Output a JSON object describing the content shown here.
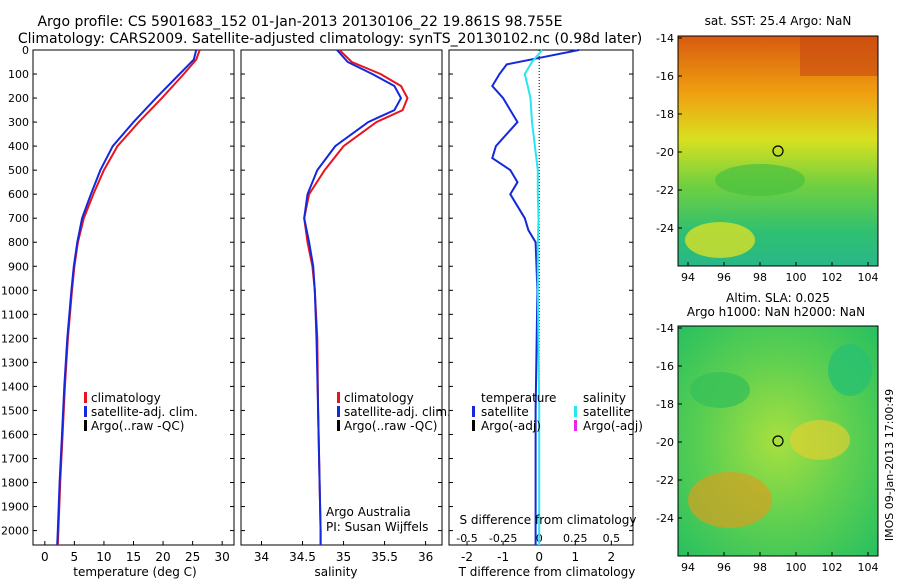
{
  "header": {
    "line1": "Argo profile: CS 5901683_152 01-Jan-2013 20130106_22 19.861S 98.755E",
    "line2": "Climatology: CARS2009. Satellite-adjusted climatology: synTS_20130102.nc (0.98d later)"
  },
  "colors": {
    "climatology": "#e8141e",
    "satellite": "#1428dc",
    "argo": "#000000",
    "salinity_satellite": "#28e6f0",
    "salinity_argo": "#e628e6"
  },
  "chart_data": [
    {
      "type": "line",
      "panel": "temperature",
      "xlabel": "temperature (deg C)",
      "ylabel": "",
      "xlim": [
        -2,
        32
      ],
      "xticks": [
        "0",
        "5",
        "10",
        "15",
        "20",
        "25",
        "30"
      ],
      "ylim": [
        2060,
        0
      ],
      "yticks": [
        "0",
        "100",
        "200",
        "300",
        "400",
        "500",
        "600",
        "700",
        "800",
        "900",
        "1000",
        "1100",
        "1200",
        "1300",
        "1400",
        "1500",
        "1600",
        "1700",
        "1800",
        "1900",
        "2000"
      ],
      "legend": [
        "climatology",
        "satellite-adj. clim.",
        "Argo(..raw -QC)"
      ],
      "series": [
        {
          "name": "climatology",
          "depth": [
            0,
            40,
            100,
            200,
            300,
            400,
            500,
            600,
            700,
            800,
            900,
            1000,
            1200,
            1400,
            1600,
            1800,
            2000,
            2060
          ],
          "values": [
            26.2,
            25.6,
            23.5,
            19.8,
            15.9,
            12.3,
            10.0,
            8.2,
            6.6,
            5.6,
            5.0,
            4.6,
            3.9,
            3.4,
            3.0,
            2.6,
            2.3,
            2.2
          ]
        },
        {
          "name": "satellite-adj. clim.",
          "depth": [
            0,
            40,
            100,
            200,
            300,
            400,
            500,
            600,
            700,
            800,
            900,
            1000,
            1200,
            1400,
            1600,
            1800,
            2000,
            2060
          ],
          "values": [
            25.6,
            25.2,
            22.8,
            18.8,
            15.0,
            11.5,
            9.4,
            7.8,
            6.3,
            5.5,
            4.9,
            4.5,
            3.8,
            3.3,
            2.9,
            2.5,
            2.2,
            2.1
          ]
        }
      ]
    },
    {
      "type": "line",
      "panel": "salinity",
      "xlabel": "salinity",
      "xlim": [
        33.75,
        36.2
      ],
      "xticks": [
        "34",
        "34.5",
        "35",
        "35.5",
        "36"
      ],
      "ylim": [
        2060,
        0
      ],
      "legend": [
        "climatology",
        "satellite-adj. clim.",
        "Argo(..raw -QC)"
      ],
      "annotation": [
        "Argo Australia",
        "PI: Susan Wijffels"
      ],
      "series": [
        {
          "name": "climatology",
          "depth": [
            0,
            50,
            100,
            150,
            200,
            250,
            300,
            400,
            500,
            600,
            700,
            800,
            900,
            1000,
            1200,
            1500,
            2000,
            2060
          ],
          "values": [
            34.95,
            35.1,
            35.45,
            35.7,
            35.78,
            35.72,
            35.4,
            35.0,
            34.77,
            34.58,
            34.52,
            34.56,
            34.62,
            34.65,
            34.68,
            34.69,
            34.72,
            34.72
          ]
        },
        {
          "name": "satellite-adj. clim.",
          "depth": [
            0,
            50,
            100,
            150,
            200,
            250,
            300,
            400,
            500,
            600,
            700,
            800,
            900,
            1000,
            1200,
            1500,
            2000,
            2060
          ],
          "values": [
            34.92,
            35.05,
            35.35,
            35.62,
            35.7,
            35.62,
            35.3,
            34.9,
            34.68,
            34.56,
            34.52,
            34.58,
            34.63,
            34.65,
            34.67,
            34.69,
            34.72,
            34.72
          ]
        }
      ]
    },
    {
      "type": "line",
      "panel": "difference",
      "xlabel": "T difference from climatology",
      "xlabel2": "S difference from climatology",
      "xlim": [
        -2.5,
        2.6
      ],
      "xticks": [
        "-2",
        "-1",
        "0",
        "1",
        "2"
      ],
      "xticks2": [
        "-0.5",
        "-0.25",
        "0",
        "0.25",
        "0.5"
      ],
      "ylim": [
        2060,
        0
      ],
      "legend_temperature": [
        "temperature",
        "satellite",
        "Argo(-adj)"
      ],
      "legend_salinity": [
        "salinity",
        "satellite",
        "Argo(-adj)"
      ],
      "series": [
        {
          "name": "temperature satellite",
          "depth": [
            0,
            30,
            60,
            100,
            150,
            200,
            300,
            400,
            450,
            500,
            550,
            600,
            650,
            700,
            750,
            800,
            1000,
            1500,
            2000,
            2060
          ],
          "values": [
            1.1,
            0.1,
            -0.9,
            -1.1,
            -1.3,
            -1.0,
            -0.6,
            -1.2,
            -1.3,
            -0.8,
            -0.6,
            -0.8,
            -0.6,
            -0.4,
            -0.3,
            -0.1,
            -0.05,
            -0.1,
            -0.1,
            -0.1
          ]
        },
        {
          "name": "salinity satellite",
          "depth": [
            0,
            50,
            100,
            150,
            200,
            300,
            400,
            500,
            600,
            700,
            800,
            1000,
            1500,
            2000,
            2060
          ],
          "values": [
            0.02,
            -0.05,
            -0.1,
            -0.08,
            -0.06,
            -0.05,
            -0.03,
            -0.01,
            -0.01,
            -0.005,
            -0.01,
            -0.01,
            0.0,
            0.0,
            0.0
          ]
        }
      ]
    }
  ],
  "maps": [
    {
      "title": "sat. SST: 25.4  Argo: NaN",
      "yticks": [
        "-14",
        "-16",
        "-18",
        "-20",
        "-22",
        "-24"
      ],
      "xticks": [
        "94",
        "96",
        "98",
        "100",
        "102",
        "104"
      ]
    },
    {
      "title_line1": "Altim. SLA: 0.025",
      "title_line2": "Argo h1000: NaN h2000: NaN",
      "yticks": [
        "-14",
        "-16",
        "-18",
        "-20",
        "-22",
        "-24"
      ],
      "xticks": [
        "94",
        "96",
        "98",
        "100",
        "102",
        "104"
      ]
    }
  ],
  "side_label": "IMOS 09-Jan-2013 17:00:49"
}
